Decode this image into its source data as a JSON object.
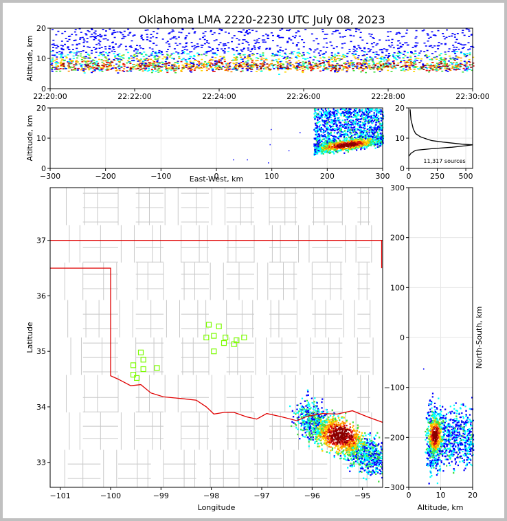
{
  "chart_data": [
    {
      "panel": "altitude-time",
      "type": "scatter",
      "title": "Oklahoma LMA 2220-2230 UTC July 08, 2023",
      "ylabel": "Altitude, km",
      "ylim": [
        0,
        20
      ],
      "yticks": [
        "0",
        "10",
        "20"
      ],
      "xlim": [
        "22:20:00",
        "22:30:00"
      ],
      "xticks": [
        "22:20:00",
        "22:22:00",
        "22:24:00",
        "22:26:00",
        "22:28:00",
        "22:30:00"
      ],
      "density": "sources spread across the full interval, concentrated at 6-10 km with a band up to ~17 km"
    },
    {
      "panel": "altitude-eastwest",
      "type": "heatmap",
      "xlabel": "East-West, km",
      "ylabel": "Altitude, km",
      "xlim": [
        -300,
        300
      ],
      "ylim": [
        0,
        20
      ],
      "xticks": [
        "−300",
        "−200",
        "−100",
        "0",
        "100",
        "200",
        "300"
      ],
      "yticks": [
        "0",
        "10",
        "20"
      ]
    },
    {
      "panel": "altitude-histogram",
      "type": "line",
      "xlim": [
        0,
        560
      ],
      "ylim": [
        0,
        20
      ],
      "xticks": [
        "0",
        "250",
        "500"
      ],
      "yticks": [
        "0",
        "10",
        "20"
      ],
      "annotation": "11,317 sources",
      "profile": [
        [
          0,
          4
        ],
        [
          20,
          5
        ],
        [
          60,
          6
        ],
        [
          200,
          6.5
        ],
        [
          380,
          7
        ],
        [
          500,
          7.5
        ],
        [
          560,
          7.8
        ],
        [
          470,
          8
        ],
        [
          300,
          8.7
        ],
        [
          200,
          9.2
        ],
        [
          150,
          9.8
        ],
        [
          100,
          10.5
        ],
        [
          60,
          11.5
        ],
        [
          40,
          13
        ],
        [
          30,
          14.5
        ],
        [
          20,
          16
        ],
        [
          15,
          18
        ],
        [
          12,
          19.5
        ]
      ]
    },
    {
      "panel": "plan-view-map",
      "type": "heatmap",
      "xlabel": "Longitude",
      "ylabel": "Latitude",
      "xlim": [
        -101.2,
        -94.6
      ],
      "ylim": [
        32.55,
        37.95
      ],
      "xticks": [
        "−101",
        "−100",
        "−99",
        "−98",
        "−97",
        "−96",
        "−95"
      ],
      "yticks": [
        "33",
        "34",
        "35",
        "36",
        "37"
      ],
      "stations": [
        [
          -99.4,
          34.98
        ],
        [
          -99.35,
          34.85
        ],
        [
          -99.55,
          34.75
        ],
        [
          -99.35,
          34.68
        ],
        [
          -99.08,
          34.7
        ],
        [
          -99.55,
          34.58
        ],
        [
          -99.48,
          34.52
        ],
        [
          -98.05,
          35.48
        ],
        [
          -97.85,
          35.45
        ],
        [
          -98.1,
          35.25
        ],
        [
          -97.95,
          35.28
        ],
        [
          -97.72,
          35.25
        ],
        [
          -97.5,
          35.2
        ],
        [
          -97.35,
          35.25
        ],
        [
          -97.75,
          35.15
        ],
        [
          -97.55,
          35.13
        ],
        [
          -97.95,
          35.0
        ]
      ]
    },
    {
      "panel": "northsouth-altitude",
      "type": "heatmap",
      "xlabel": "Altitude, km",
      "ylabel": "North-South, km",
      "xlim": [
        0,
        20
      ],
      "ylim": [
        -300,
        300
      ],
      "xticks": [
        "0",
        "10",
        "20"
      ],
      "yticks": [
        "−300",
        "−200",
        "−100",
        "0",
        "100",
        "200",
        "300"
      ]
    }
  ]
}
